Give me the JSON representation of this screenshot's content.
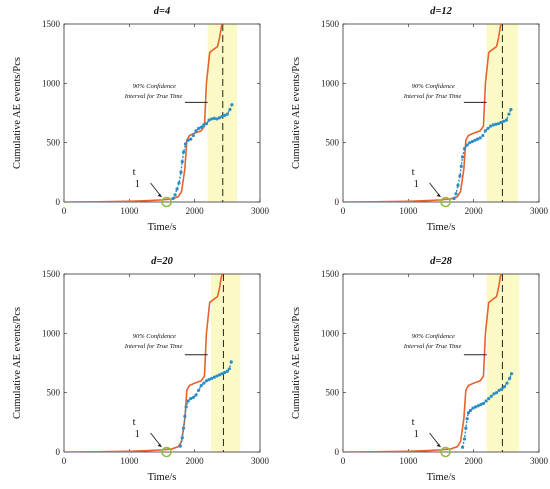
{
  "colors": {
    "cumulative_curve": "#e8622c",
    "predicted_points": "#2a8ec8",
    "confidence_band": "#fbfac6",
    "onset_marker": "#8fbf3f",
    "axes": "#333333"
  },
  "chart_data": [
    {
      "type": "line",
      "title": "d=4",
      "xlabel": "Time/s",
      "ylabel": "Cumulative AE events/Pcs",
      "xlim": [
        0,
        3000
      ],
      "ylim": [
        0,
        1500
      ],
      "xticks": [
        0,
        1000,
        2000,
        3000
      ],
      "yticks": [
        0,
        500,
        1000,
        1500
      ],
      "annotation": [
        "90% Confidence",
        "Interval for True Time"
      ],
      "onset_label": [
        "t",
        "1"
      ],
      "onset_time": 1570,
      "confidence_interval": [
        2200,
        2650
      ],
      "true_time": 2430,
      "series": [
        {
          "values": [
            [
              0,
              0
            ],
            [
              500,
              2
            ],
            [
              1000,
              6
            ],
            [
              1300,
              12
            ],
            [
              1500,
              18
            ],
            [
              1650,
              26
            ],
            [
              1750,
              45
            ],
            [
              1800,
              90
            ],
            [
              1850,
              280
            ],
            [
              1880,
              520
            ],
            [
              1920,
              560
            ],
            [
              2000,
              580
            ],
            [
              2100,
              600
            ],
            [
              2150,
              640
            ],
            [
              2180,
              1000
            ],
            [
              2230,
              1260
            ],
            [
              2300,
              1290
            ],
            [
              2350,
              1310
            ],
            [
              2380,
              1380
            ],
            [
              2410,
              1480
            ],
            [
              2430,
              1520
            ]
          ]
        },
        {
          "values": [
            [
              1670,
              30
            ],
            [
              1700,
              60
            ],
            [
              1730,
              110
            ],
            [
              1760,
              160
            ],
            [
              1790,
              250
            ],
            [
              1810,
              340
            ],
            [
              1830,
              420
            ],
            [
              1860,
              490
            ],
            [
              1900,
              520
            ],
            [
              1940,
              530
            ],
            [
              1980,
              560
            ],
            [
              2020,
              600
            ],
            [
              2060,
              620
            ],
            [
              2100,
              630
            ],
            [
              2140,
              650
            ],
            [
              2180,
              660
            ],
            [
              2220,
              690
            ],
            [
              2260,
              700
            ],
            [
              2300,
              705
            ],
            [
              2340,
              700
            ],
            [
              2380,
              710
            ],
            [
              2420,
              720
            ],
            [
              2460,
              730
            ],
            [
              2500,
              740
            ],
            [
              2540,
              780
            ],
            [
              2570,
              820
            ]
          ]
        }
      ]
    },
    {
      "type": "line",
      "title": "d=12",
      "xlabel": "Time/s",
      "ylabel": "Cumulative AE events/Pcs",
      "xlim": [
        0,
        3000
      ],
      "ylim": [
        0,
        1500
      ],
      "xticks": [
        0,
        1000,
        2000,
        3000
      ],
      "yticks": [
        0,
        500,
        1000,
        1500
      ],
      "annotation": [
        "90% Confidence",
        "Interval for True Time"
      ],
      "onset_label": [
        "t",
        "1"
      ],
      "onset_time": 1570,
      "confidence_interval": [
        2200,
        2680
      ],
      "true_time": 2440,
      "series": [
        {
          "values": [
            [
              0,
              0
            ],
            [
              500,
              2
            ],
            [
              1000,
              6
            ],
            [
              1300,
              12
            ],
            [
              1500,
              18
            ],
            [
              1650,
              26
            ],
            [
              1750,
              45
            ],
            [
              1800,
              90
            ],
            [
              1850,
              280
            ],
            [
              1880,
              520
            ],
            [
              1920,
              560
            ],
            [
              2000,
              580
            ],
            [
              2100,
              600
            ],
            [
              2150,
              640
            ],
            [
              2180,
              1000
            ],
            [
              2230,
              1260
            ],
            [
              2300,
              1290
            ],
            [
              2350,
              1310
            ],
            [
              2380,
              1380
            ],
            [
              2410,
              1480
            ],
            [
              2440,
              1520
            ]
          ]
        },
        {
          "values": [
            [
              1700,
              30
            ],
            [
              1730,
              70
            ],
            [
              1760,
              140
            ],
            [
              1790,
              220
            ],
            [
              1810,
              300
            ],
            [
              1830,
              380
            ],
            [
              1860,
              450
            ],
            [
              1900,
              480
            ],
            [
              1940,
              500
            ],
            [
              1980,
              510
            ],
            [
              2020,
              520
            ],
            [
              2060,
              530
            ],
            [
              2100,
              540
            ],
            [
              2140,
              560
            ],
            [
              2180,
              600
            ],
            [
              2220,
              620
            ],
            [
              2260,
              640
            ],
            [
              2300,
              650
            ],
            [
              2340,
              655
            ],
            [
              2380,
              660
            ],
            [
              2420,
              670
            ],
            [
              2460,
              680
            ],
            [
              2500,
              690
            ],
            [
              2540,
              740
            ],
            [
              2570,
              780
            ]
          ]
        }
      ]
    },
    {
      "type": "line",
      "title": "d=20",
      "xlabel": "Time/s",
      "ylabel": "Cumulative AE events/Pcs",
      "xlim": [
        0,
        3000
      ],
      "ylim": [
        0,
        1500
      ],
      "xticks": [
        0,
        1000,
        2000,
        3000
      ],
      "yticks": [
        0,
        500,
        1000,
        1500
      ],
      "annotation": [
        "90% Confidence",
        "Interval for True Time"
      ],
      "onset_label": [
        "t",
        "1"
      ],
      "onset_time": 1570,
      "confidence_interval": [
        2250,
        2700
      ],
      "true_time": 2440,
      "series": [
        {
          "values": [
            [
              0,
              0
            ],
            [
              500,
              2
            ],
            [
              1000,
              6
            ],
            [
              1300,
              12
            ],
            [
              1500,
              18
            ],
            [
              1650,
              26
            ],
            [
              1750,
              45
            ],
            [
              1800,
              90
            ],
            [
              1850,
              280
            ],
            [
              1880,
              520
            ],
            [
              1920,
              560
            ],
            [
              2000,
              580
            ],
            [
              2100,
              600
            ],
            [
              2150,
              640
            ],
            [
              2180,
              1000
            ],
            [
              2230,
              1260
            ],
            [
              2300,
              1290
            ],
            [
              2350,
              1310
            ],
            [
              2380,
              1380
            ],
            [
              2410,
              1480
            ],
            [
              2440,
              1520
            ]
          ]
        },
        {
          "values": [
            [
              1780,
              50
            ],
            [
              1810,
              120
            ],
            [
              1830,
              200
            ],
            [
              1850,
              300
            ],
            [
              1870,
              380
            ],
            [
              1900,
              430
            ],
            [
              1940,
              450
            ],
            [
              1980,
              460
            ],
            [
              2020,
              480
            ],
            [
              2060,
              520
            ],
            [
              2100,
              560
            ],
            [
              2140,
              580
            ],
            [
              2180,
              600
            ],
            [
              2220,
              610
            ],
            [
              2260,
              620
            ],
            [
              2300,
              630
            ],
            [
              2340,
              640
            ],
            [
              2380,
              650
            ],
            [
              2420,
              660
            ],
            [
              2460,
              670
            ],
            [
              2500,
              680
            ],
            [
              2530,
              700
            ],
            [
              2560,
              760
            ]
          ]
        }
      ]
    },
    {
      "type": "line",
      "title": "d=28",
      "xlabel": "Time/s",
      "ylabel": "Cumulative AE events/Pcs",
      "xlim": [
        0,
        3000
      ],
      "ylim": [
        0,
        1500
      ],
      "xticks": [
        0,
        1000,
        2000,
        3000
      ],
      "yticks": [
        0,
        500,
        1000,
        1500
      ],
      "annotation": [
        "90% Confidence",
        "Interval for True Time"
      ],
      "onset_label": [
        "t",
        "1"
      ],
      "onset_time": 1570,
      "confidence_interval": [
        2200,
        2700
      ],
      "true_time": 2440,
      "series": [
        {
          "values": [
            [
              0,
              0
            ],
            [
              500,
              2
            ],
            [
              1000,
              6
            ],
            [
              1300,
              12
            ],
            [
              1500,
              18
            ],
            [
              1650,
              26
            ],
            [
              1750,
              45
            ],
            [
              1800,
              90
            ],
            [
              1850,
              280
            ],
            [
              1880,
              520
            ],
            [
              1920,
              560
            ],
            [
              2000,
              580
            ],
            [
              2100,
              600
            ],
            [
              2150,
              640
            ],
            [
              2180,
              1000
            ],
            [
              2230,
              1260
            ],
            [
              2300,
              1290
            ],
            [
              2350,
              1310
            ],
            [
              2380,
              1380
            ],
            [
              2410,
              1480
            ],
            [
              2440,
              1520
            ]
          ]
        },
        {
          "values": [
            [
              1830,
              40
            ],
            [
              1860,
              110
            ],
            [
              1880,
              200
            ],
            [
              1900,
              280
            ],
            [
              1920,
              330
            ],
            [
              1950,
              350
            ],
            [
              1990,
              370
            ],
            [
              2030,
              380
            ],
            [
              2070,
              390
            ],
            [
              2110,
              400
            ],
            [
              2150,
              410
            ],
            [
              2190,
              430
            ],
            [
              2230,
              450
            ],
            [
              2270,
              470
            ],
            [
              2310,
              490
            ],
            [
              2350,
              500
            ],
            [
              2390,
              520
            ],
            [
              2430,
              530
            ],
            [
              2470,
              550
            ],
            [
              2510,
              580
            ],
            [
              2550,
              620
            ],
            [
              2580,
              660
            ]
          ]
        }
      ]
    }
  ]
}
